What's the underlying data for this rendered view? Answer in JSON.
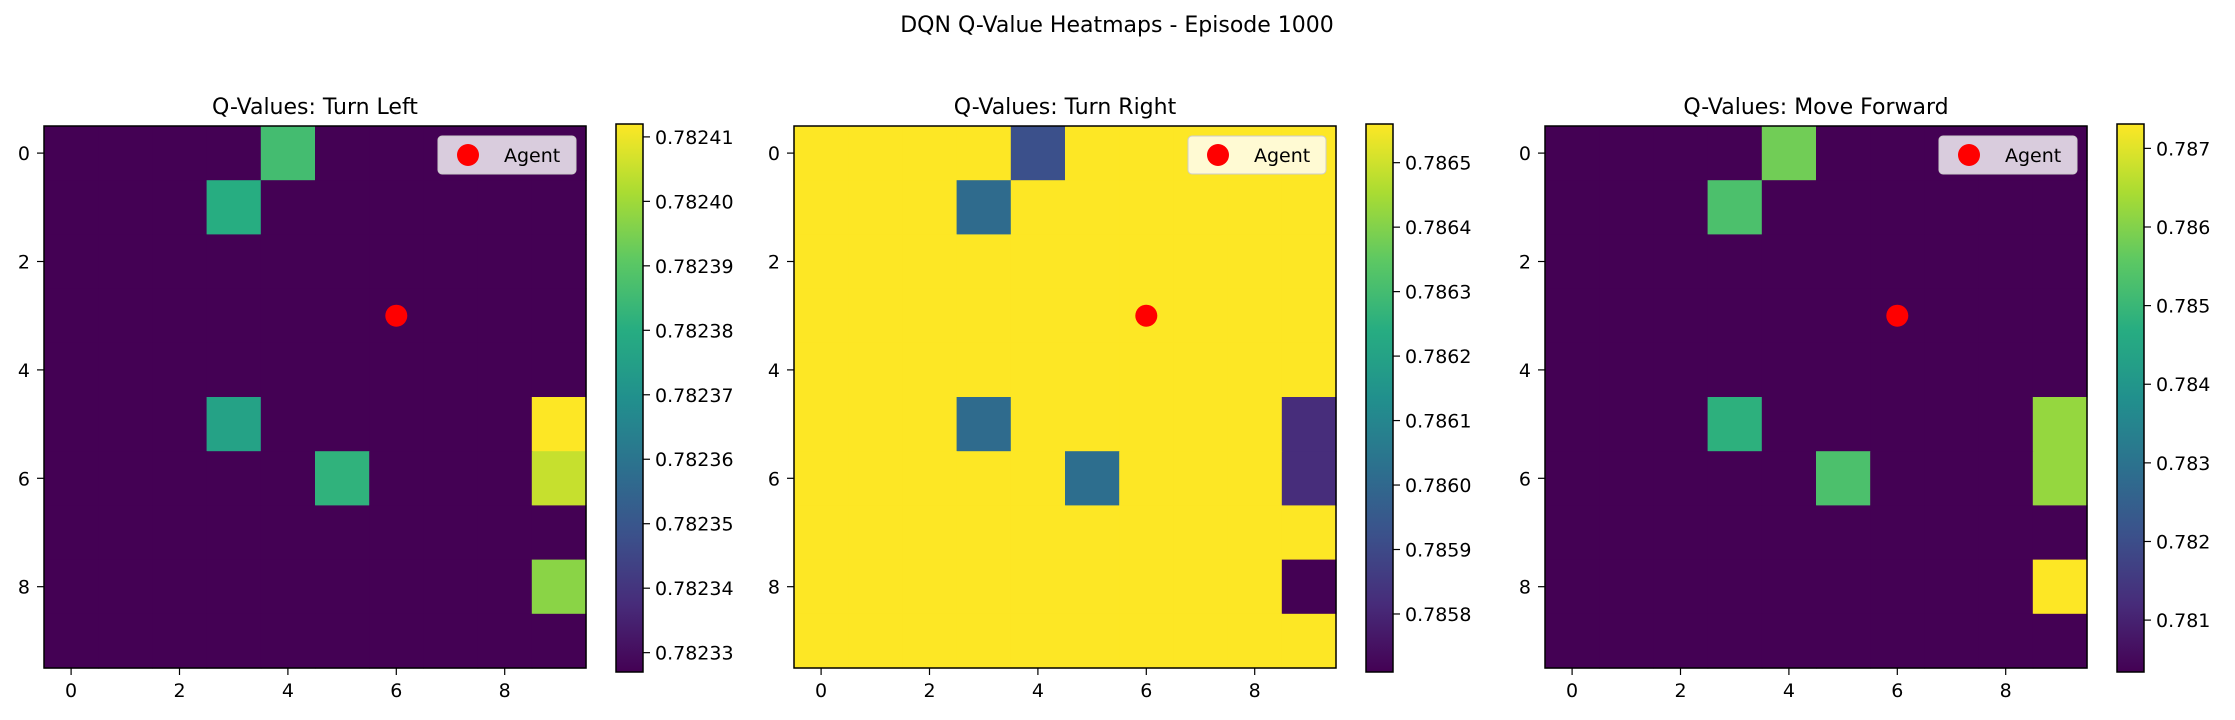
{
  "figure_title": "DQN Q-Value Heatmaps - Episode 1000",
  "chart_data": [
    {
      "type": "heatmap",
      "title": "Q-Values: Turn Left",
      "x_ticks": [
        0,
        2,
        4,
        6,
        8
      ],
      "y_ticks": [
        0,
        2,
        4,
        6,
        8
      ],
      "xlim": [
        -0.5,
        9.5
      ],
      "ylim": [
        9.5,
        -0.5
      ],
      "grid": false,
      "legend": {
        "placement": "upper right",
        "entries": [
          "Agent"
        ]
      },
      "agent": {
        "x": 6,
        "y": 3,
        "color": "#ff0000"
      },
      "colormap": "viridis",
      "vmin": 0.782327,
      "vmax": 0.782412,
      "colorbar_ticks": [
        "0.78233",
        "0.78234",
        "0.78235",
        "0.78236",
        "0.78237",
        "0.78238",
        "0.78239",
        "0.78240",
        "0.78241"
      ],
      "colorbar_tick_values": [
        0.78233,
        0.78234,
        0.78235,
        0.78236,
        0.78237,
        0.78238,
        0.78239,
        0.7824,
        0.78241
      ],
      "default_value": 0.782327,
      "cells": [
        {
          "row": 0,
          "col": 4,
          "value": 0.782386
        },
        {
          "row": 1,
          "col": 3,
          "value": 0.78238
        },
        {
          "row": 5,
          "col": 3,
          "value": 0.782376
        },
        {
          "row": 5,
          "col": 9,
          "value": 0.782412
        },
        {
          "row": 6,
          "col": 5,
          "value": 0.782382
        },
        {
          "row": 6,
          "col": 9,
          "value": 0.782405
        },
        {
          "row": 8,
          "col": 9,
          "value": 0.782397
        }
      ]
    },
    {
      "type": "heatmap",
      "title": "Q-Values: Turn Right",
      "x_ticks": [
        0,
        2,
        4,
        6,
        8
      ],
      "y_ticks": [
        0,
        2,
        4,
        6,
        8
      ],
      "xlim": [
        -0.5,
        9.5
      ],
      "ylim": [
        9.5,
        -0.5
      ],
      "grid": false,
      "legend": {
        "placement": "upper right",
        "entries": [
          "Agent"
        ]
      },
      "agent": {
        "x": 6,
        "y": 3,
        "color": "#ff0000"
      },
      "colormap": "viridis",
      "vmin": 0.78571,
      "vmax": 0.78656,
      "colorbar_ticks": [
        "0.7858",
        "0.7859",
        "0.7860",
        "0.7861",
        "0.7862",
        "0.7863",
        "0.7864",
        "0.7865"
      ],
      "colorbar_tick_values": [
        0.7858,
        0.7859,
        0.786,
        0.7861,
        0.7862,
        0.7863,
        0.7864,
        0.7865
      ],
      "default_value": 0.78656,
      "cells": [
        {
          "row": 0,
          "col": 4,
          "value": 0.78592
        },
        {
          "row": 1,
          "col": 3,
          "value": 0.78601
        },
        {
          "row": 5,
          "col": 3,
          "value": 0.78601
        },
        {
          "row": 5,
          "col": 9,
          "value": 0.78582
        },
        {
          "row": 6,
          "col": 5,
          "value": 0.78602
        },
        {
          "row": 6,
          "col": 9,
          "value": 0.78582
        },
        {
          "row": 8,
          "col": 9,
          "value": 0.78571
        }
      ]
    },
    {
      "type": "heatmap",
      "title": "Q-Values: Move Forward",
      "x_ticks": [
        0,
        2,
        4,
        6,
        8
      ],
      "y_ticks": [
        0,
        2,
        4,
        6,
        8
      ],
      "xlim": [
        -0.5,
        9.5
      ],
      "ylim": [
        9.5,
        -0.5
      ],
      "grid": false,
      "legend": {
        "placement": "upper right",
        "entries": [
          "Agent"
        ]
      },
      "agent": {
        "x": 6,
        "y": 3,
        "color": "#ff0000"
      },
      "colormap": "viridis",
      "vmin": 0.78034,
      "vmax": 0.78731,
      "colorbar_ticks": [
        "0.781",
        "0.782",
        "0.783",
        "0.784",
        "0.785",
        "0.786",
        "0.787"
      ],
      "colorbar_tick_values": [
        0.781,
        0.782,
        0.783,
        0.784,
        0.785,
        0.786,
        0.787
      ],
      "default_value": 0.78034,
      "cells": [
        {
          "row": 0,
          "col": 4,
          "value": 0.7858
        },
        {
          "row": 1,
          "col": 3,
          "value": 0.7853
        },
        {
          "row": 5,
          "col": 3,
          "value": 0.7848
        },
        {
          "row": 5,
          "col": 9,
          "value": 0.7862
        },
        {
          "row": 6,
          "col": 5,
          "value": 0.7853
        },
        {
          "row": 6,
          "col": 9,
          "value": 0.7862
        },
        {
          "row": 8,
          "col": 9,
          "value": 0.78731
        }
      ]
    }
  ]
}
